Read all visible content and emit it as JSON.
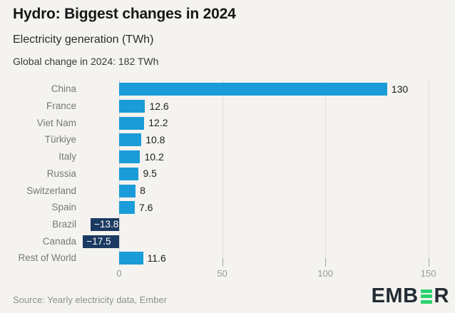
{
  "header": {
    "title": "Hydro: Biggest changes in 2024",
    "subtitle": "Electricity generation (TWh)",
    "annotation": "Global change in 2024: 182 TWh"
  },
  "chart_data": {
    "type": "bar",
    "orientation": "horizontal",
    "title": "Hydro: Biggest changes in 2024",
    "xlabel": "",
    "ylabel": "",
    "categories": [
      "China",
      "France",
      "Viet Nam",
      "Türkiye",
      "Italy",
      "Russia",
      "Switzerland",
      "Spain",
      "Brazil",
      "Canada",
      "Rest of World"
    ],
    "values": [
      130,
      12.6,
      12.2,
      10.8,
      10.2,
      9.5,
      8,
      7.6,
      -13.8,
      -17.5,
      11.6
    ],
    "value_labels": [
      "130",
      "12.6",
      "12.2",
      "10.8",
      "10.2",
      "9.5",
      "8",
      "7.6",
      "−13.8",
      "−17.5",
      "11.6"
    ],
    "x_ticks": [
      0,
      50,
      100,
      150
    ],
    "x_tick_labels": [
      "0",
      "50",
      "100",
      "150"
    ],
    "xlim": [
      -21,
      157
    ],
    "grid": true,
    "legend": false,
    "positive_color": "#1a9cd8",
    "negative_color": "#1b3a61"
  },
  "footer": {
    "source": "Source: Yearly electricity data, Ember"
  },
  "logo": {
    "name": "EMBER",
    "prefix": "EMB",
    "suffix": "R",
    "dark_color": "#232c34",
    "green_color": "#2bd36f"
  }
}
